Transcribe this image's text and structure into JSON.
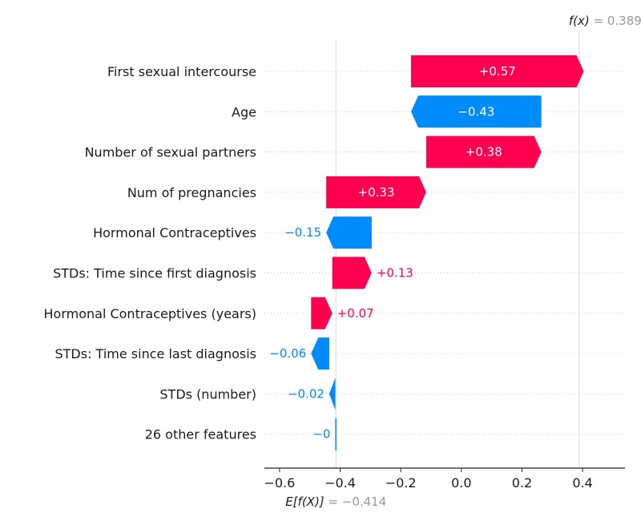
{
  "chart_data": {
    "type": "waterfall",
    "features": [
      {
        "name": "First sexual intercourse",
        "value": 0.57,
        "label": "+0.57"
      },
      {
        "name": "Age",
        "value": -0.43,
        "label": "−0.43"
      },
      {
        "name": "Number of sexual partners",
        "value": 0.38,
        "label": "+0.38"
      },
      {
        "name": "Num of pregnancies",
        "value": 0.33,
        "label": "+0.33"
      },
      {
        "name": "Hormonal Contraceptives",
        "value": -0.15,
        "label": "−0.15"
      },
      {
        "name": "STDs: Time since first diagnosis",
        "value": 0.13,
        "label": "+0.13"
      },
      {
        "name": "Hormonal Contraceptives (years)",
        "value": 0.07,
        "label": "+0.07"
      },
      {
        "name": "STDs: Time since last diagnosis",
        "value": -0.06,
        "label": "−0.06"
      },
      {
        "name": "STDs (number)",
        "value": -0.02,
        "label": "−0.02"
      },
      {
        "name": "26 other features",
        "value": -0.002,
        "label": "−0"
      }
    ],
    "base_value": -0.414,
    "output_value": 0.389,
    "base_label": "E[f(X)]",
    "base_value_text": "= −0.414",
    "output_label": "f(x)",
    "output_value_text": "= 0.389",
    "xlim": [
      -0.65,
      0.54
    ],
    "x_ticks": [
      -0.6,
      -0.4,
      -0.2,
      0.0,
      0.2,
      0.4
    ],
    "x_tick_labels": [
      "−0.6",
      "−0.4",
      "−0.2",
      "0.0",
      "0.2",
      "0.4"
    ],
    "colors": {
      "positive": "#ff0051",
      "negative": "#008bfb",
      "base_text": "#999999",
      "grid": "#cccccc"
    }
  }
}
